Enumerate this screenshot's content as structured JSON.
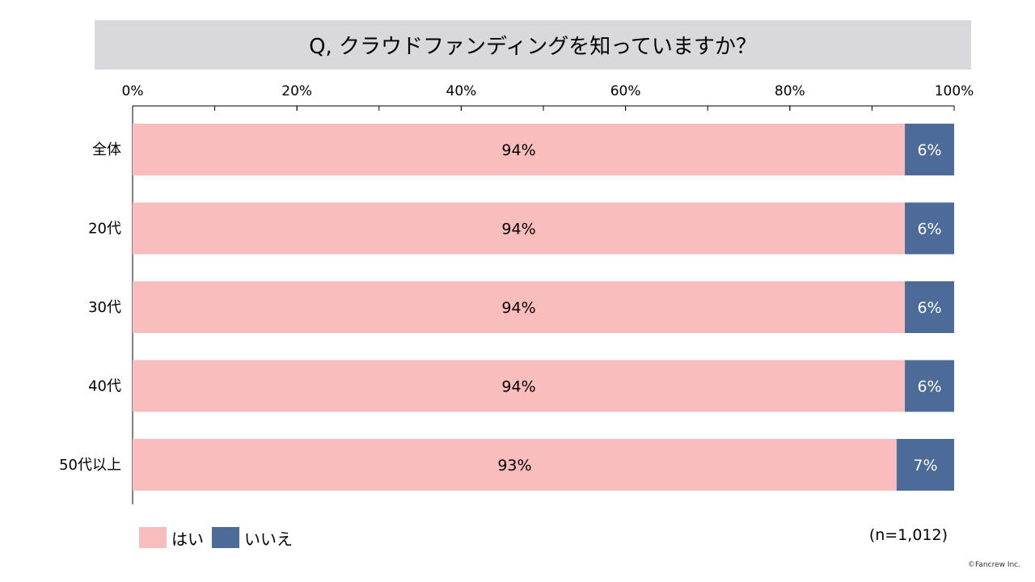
{
  "chart_data": {
    "type": "bar",
    "orientation": "horizontal",
    "stacked": true,
    "title": "Q, クラウドファンディングを知っていますか？",
    "categories": [
      "全体",
      "20代",
      "30代",
      "40代",
      "50代以上"
    ],
    "series": [
      {
        "name": "はい",
        "color": "#fabdbd",
        "values": [
          94,
          94,
          94,
          94,
          93
        ],
        "labels": [
          "94%",
          "94%",
          "94%",
          "94%",
          "93%"
        ],
        "label_color": "#000000"
      },
      {
        "name": "いいえ",
        "color": "#4d6b98",
        "values": [
          6,
          6,
          6,
          6,
          7
        ],
        "labels": [
          "6%",
          "6%",
          "6%",
          "6%",
          "7%"
        ],
        "label_color": "#ffffff"
      }
    ],
    "xlim": [
      0,
      100
    ],
    "xticks": [
      "0%",
      "20%",
      "40%",
      "60%",
      "80%",
      "100%"
    ],
    "x_axis_position": "top",
    "legend_position": "bottom-left",
    "grid": false
  },
  "sample_size": "(n=1,012)",
  "copyright": "©Fancrew Inc."
}
